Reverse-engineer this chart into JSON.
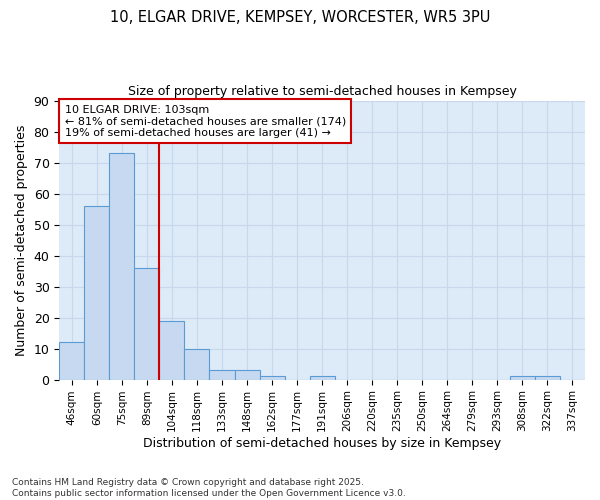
{
  "title_line1": "10, ELGAR DRIVE, KEMPSEY, WORCESTER, WR5 3PU",
  "title_line2": "Size of property relative to semi-detached houses in Kempsey",
  "xlabel": "Distribution of semi-detached houses by size in Kempsey",
  "ylabel": "Number of semi-detached properties",
  "bar_color": "#c6d9f0",
  "bar_edge_color": "#5b9bd5",
  "categories": [
    "46sqm",
    "60sqm",
    "75sqm",
    "89sqm",
    "104sqm",
    "118sqm",
    "133sqm",
    "148sqm",
    "162sqm",
    "177sqm",
    "191sqm",
    "206sqm",
    "220sqm",
    "235sqm",
    "250sqm",
    "264sqm",
    "279sqm",
    "293sqm",
    "308sqm",
    "322sqm",
    "337sqm"
  ],
  "values": [
    12,
    56,
    73,
    36,
    19,
    10,
    3,
    3,
    1,
    0,
    1,
    0,
    0,
    0,
    0,
    0,
    0,
    0,
    1,
    1,
    0
  ],
  "ylim": [
    0,
    90
  ],
  "yticks": [
    0,
    10,
    20,
    30,
    40,
    50,
    60,
    70,
    80,
    90
  ],
  "vline_x_index": 4,
  "vline_color": "#cc0000",
  "annotation_title": "10 ELGAR DRIVE: 103sqm",
  "annotation_line2": "← 81% of semi-detached houses are smaller (174)",
  "annotation_line3": "19% of semi-detached houses are larger (41) →",
  "annotation_box_color": "#cc0000",
  "footnote1": "Contains HM Land Registry data © Crown copyright and database right 2025.",
  "footnote2": "Contains public sector information licensed under the Open Government Licence v3.0.",
  "grid_color": "#c8d8ec",
  "bg_color": "#ddeaf8",
  "fig_bg_color": "#ffffff"
}
